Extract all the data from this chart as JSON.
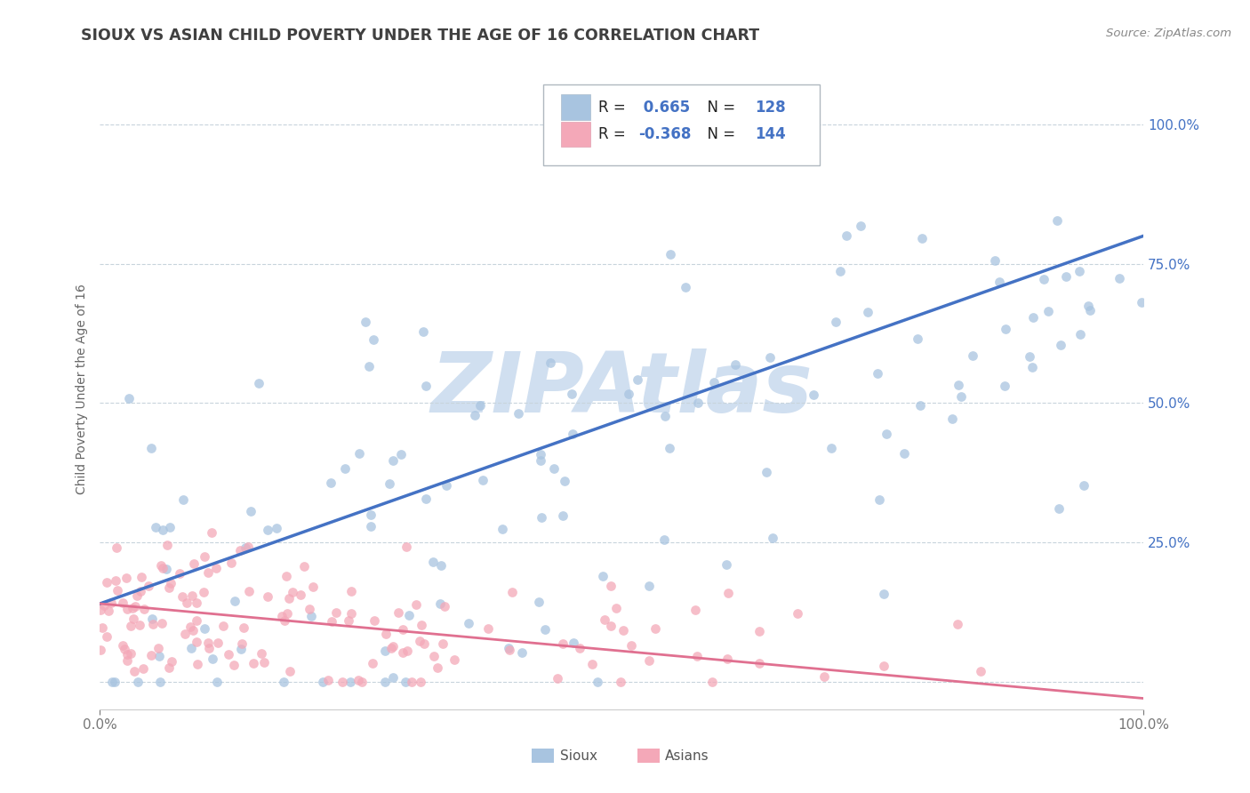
{
  "title": "SIOUX VS ASIAN CHILD POVERTY UNDER THE AGE OF 16 CORRELATION CHART",
  "source_text": "Source: ZipAtlas.com",
  "ylabel": "Child Poverty Under the Age of 16",
  "legend_sioux_label": "Sioux",
  "legend_asian_label": "Asians",
  "r_sioux": 0.665,
  "n_sioux": 128,
  "r_asian": -0.368,
  "n_asian": 144,
  "xlim": [
    0.0,
    1.0
  ],
  "ylim": [
    -0.05,
    1.1
  ],
  "ytick_positions": [
    0.0,
    0.25,
    0.5,
    0.75,
    1.0
  ],
  "xtick_positions": [
    0.0,
    1.0
  ],
  "xtick_labels": [
    "0.0%",
    "100.0%"
  ],
  "sioux_color": "#a8c4e0",
  "asian_color": "#f4a8b8",
  "sioux_line_color": "#4472c4",
  "asian_line_color": "#e07090",
  "watermark_text": "ZIPAtlas",
  "watermark_color": "#d0dff0",
  "background_color": "#ffffff",
  "grid_color": "#c8d4dc",
  "title_color": "#404040",
  "legend_r_color": "#4472c4",
  "dot_size": 60,
  "dot_alpha": 0.75,
  "sioux_line_y0": 0.14,
  "sioux_line_y1": 0.8,
  "asian_line_y0": 0.14,
  "asian_line_y1": -0.03
}
